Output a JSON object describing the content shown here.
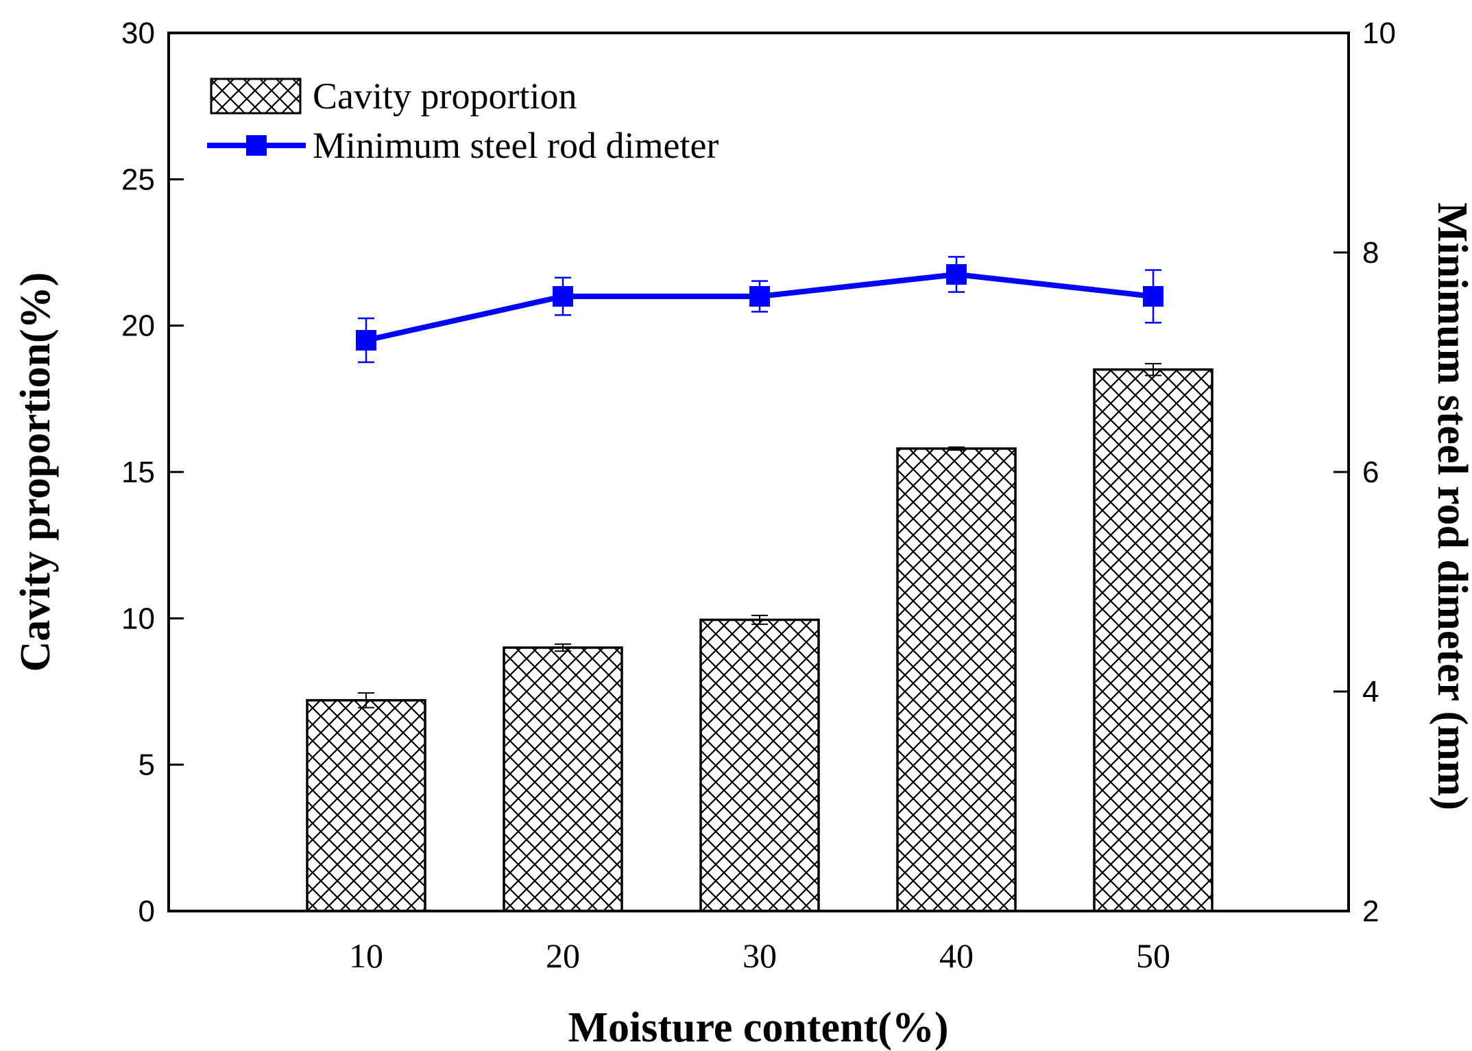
{
  "chart_data": {
    "type": "bar",
    "categories": [
      "10",
      "20",
      "30",
      "40",
      "50"
    ],
    "xlabel": "Moisture content(%)",
    "ylabel": "Cavity proportion(%)",
    "y2label": "Minimum steel rod dimeter (mm)",
    "ylim": [
      0,
      30
    ],
    "y2lim": [
      2,
      10
    ],
    "yticks": [
      "0",
      "5",
      "10",
      "15",
      "20",
      "25",
      "30"
    ],
    "y2ticks": [
      "2",
      "4",
      "6",
      "8",
      "10"
    ],
    "series": [
      {
        "name": "Cavity proportion",
        "kind": "bar",
        "axis": "left",
        "pattern": "crosshatch",
        "values": [
          7.2,
          9.0,
          9.95,
          15.8,
          18.5
        ],
        "errors": [
          0.25,
          0.12,
          0.15,
          0.05,
          0.2
        ]
      },
      {
        "name": "Minimum steel rod dimeter",
        "kind": "line",
        "axis": "right",
        "color": "#0000FF",
        "marker": "square",
        "values": [
          7.2,
          7.6,
          7.6,
          7.8,
          7.6
        ],
        "errors": [
          0.2,
          0.17,
          0.14,
          0.16,
          0.24
        ]
      }
    ],
    "legend": "top-left"
  }
}
